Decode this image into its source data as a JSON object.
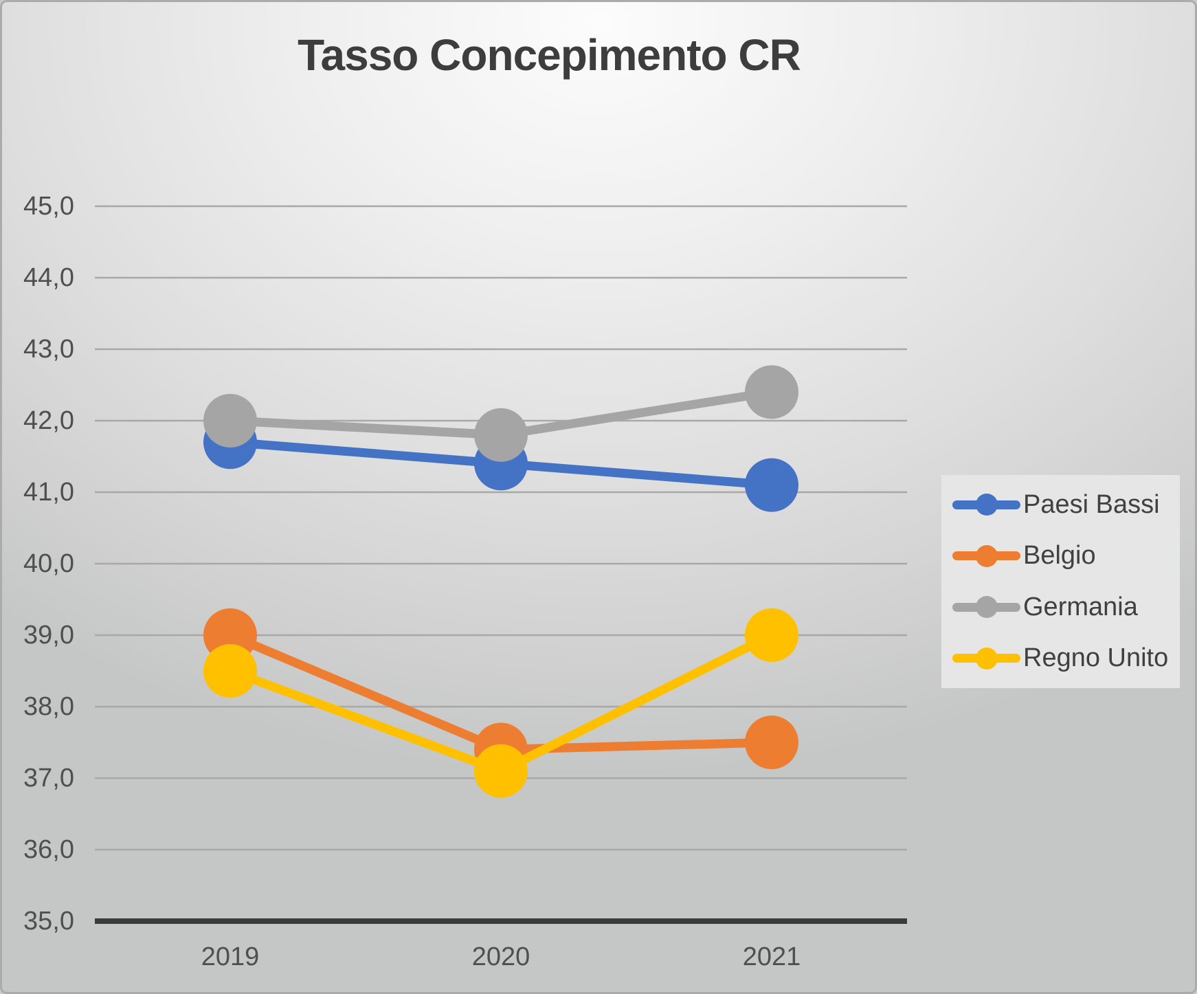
{
  "title": "Tasso Concepimento CR",
  "colors": {
    "paesi_bassi": "#4472C4",
    "belgio": "#ED7D31",
    "germania": "#A5A5A5",
    "regno_unito": "#FFC000",
    "gridline": "#a8a8a8",
    "axis_line": "#3b3b3b",
    "axis_text": "#4f4f4f",
    "title_text": "#3d3d3d",
    "legend_background": "#e6e6e6"
  },
  "chart_data": {
    "type": "line",
    "title": "Tasso Concepimento CR",
    "x": [
      "2019",
      "2020",
      "2021"
    ],
    "series": [
      {
        "name": "Paesi Bassi",
        "color": "#4472C4",
        "values": [
          41.7,
          41.4,
          41.1
        ]
      },
      {
        "name": "Belgio",
        "color": "#ED7D31",
        "values": [
          39.0,
          37.4,
          37.5
        ]
      },
      {
        "name": "Germania",
        "color": "#A5A5A5",
        "values": [
          42.0,
          41.8,
          42.4
        ]
      },
      {
        "name": "Regno Unito",
        "color": "#FFC000",
        "values": [
          38.5,
          37.1,
          39.0
        ]
      }
    ],
    "ylim": [
      35.0,
      45.0
    ],
    "ytick_step": 1.0,
    "ytick_labels": [
      "35,0",
      "36,0",
      "37,0",
      "38,0",
      "39,0",
      "40,0",
      "41,0",
      "42,0",
      "43,0",
      "44,0",
      "45,0"
    ],
    "xlabel": "",
    "ylabel": "",
    "grid": true,
    "legend_position": "right",
    "decimal_separator": ","
  }
}
